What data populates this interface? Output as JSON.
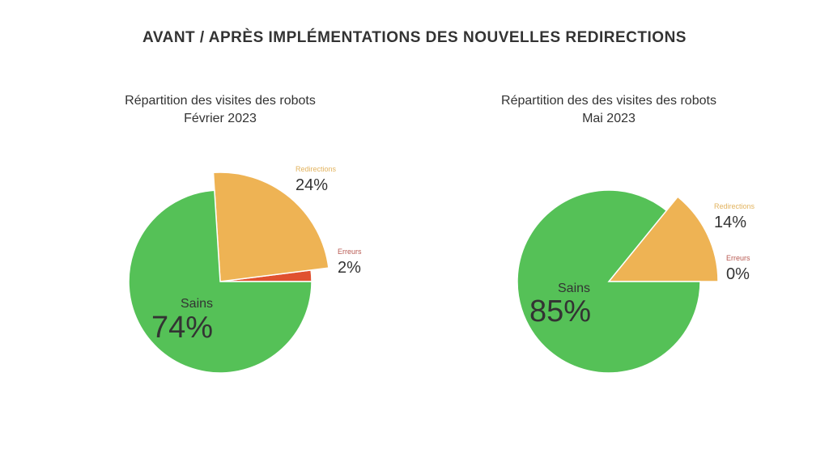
{
  "title": "AVANT / APRÈS IMPLÉMENTATIONS DES NOUVELLES REDIRECTIONS",
  "colors": {
    "Sains": "#55c157",
    "Redirections": "#eeb354",
    "Erreurs": "#e0512f",
    "redir_label": "#e2b35e",
    "err_label": "#b85a52"
  },
  "chart_data": [
    {
      "type": "pie",
      "title": "Répartition des visites des robots",
      "subtitle": "Février 2023",
      "slices": [
        {
          "label": "Erreurs",
          "value": 2,
          "display": "2%"
        },
        {
          "label": "Redirections",
          "value": 24,
          "display": "24%",
          "exploded": true
        },
        {
          "label": "Sains",
          "value": 74,
          "display": "74%"
        }
      ]
    },
    {
      "type": "pie",
      "title": "Répartition des des visites des robots",
      "subtitle": "Mai 2023",
      "slices": [
        {
          "label": "Erreurs",
          "value": 0,
          "display": "0%"
        },
        {
          "label": "Redirections",
          "value": 14,
          "display": "14%",
          "exploded": true
        },
        {
          "label": "Sains",
          "value": 85,
          "display": "85%"
        }
      ]
    }
  ]
}
